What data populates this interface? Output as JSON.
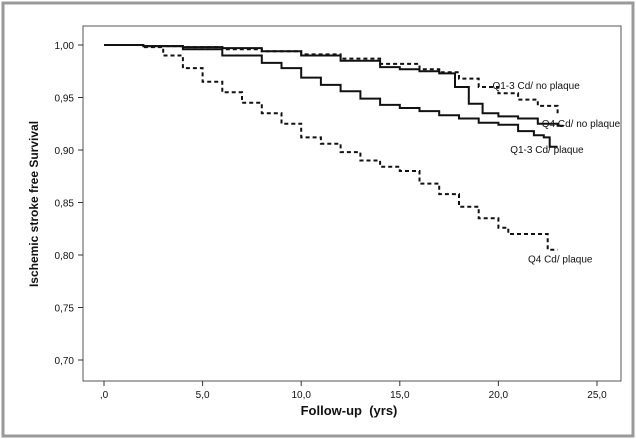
{
  "chart_data": {
    "type": "line",
    "title": "",
    "xlabel": "Follow-up  (yrs)",
    "ylabel": "Ischemic stroke free Survival",
    "xlim": [
      0,
      25
    ],
    "ylim": [
      0.7,
      1.0
    ],
    "x_ticks": [
      0,
      5,
      10,
      15,
      20,
      25
    ],
    "x_tick_labels": [
      ",0",
      "5,0",
      "10,0",
      "15,0",
      "20,0",
      "25,0"
    ],
    "y_ticks": [
      0.7,
      0.75,
      0.8,
      0.85,
      0.9,
      0.95,
      1.0
    ],
    "y_tick_labels": [
      "0,70",
      "0,75",
      "0,80",
      "0,85",
      "0,90",
      "0,95",
      "1,00"
    ],
    "grid": false,
    "series": [
      {
        "name": "Q1-3 Cd/ no plaque",
        "style": "dashed",
        "label_at": [
          19.7,
          0.958
        ],
        "points": [
          [
            0,
            1.0
          ],
          [
            2,
            0.999
          ],
          [
            4,
            0.998
          ],
          [
            6,
            0.996
          ],
          [
            8,
            0.994
          ],
          [
            10,
            0.991
          ],
          [
            12,
            0.987
          ],
          [
            14,
            0.982
          ],
          [
            16,
            0.977
          ],
          [
            17,
            0.974
          ],
          [
            18,
            0.968
          ],
          [
            19,
            0.96
          ],
          [
            20,
            0.954
          ],
          [
            21,
            0.948
          ],
          [
            22,
            0.942
          ],
          [
            23,
            0.935
          ]
        ]
      },
      {
        "name": "Q4 Cd/ no plaque",
        "style": "solid",
        "label_at": [
          22.2,
          0.922
        ],
        "points": [
          [
            0,
            1.0
          ],
          [
            2,
            0.999
          ],
          [
            4,
            0.998
          ],
          [
            6,
            0.997
          ],
          [
            8,
            0.994
          ],
          [
            10,
            0.99
          ],
          [
            12,
            0.985
          ],
          [
            14,
            0.979
          ],
          [
            15,
            0.977
          ],
          [
            16,
            0.975
          ],
          [
            17,
            0.973
          ],
          [
            17.8,
            0.96
          ],
          [
            18.5,
            0.944
          ],
          [
            19.2,
            0.935
          ],
          [
            20,
            0.932
          ],
          [
            21,
            0.93
          ],
          [
            22,
            0.925
          ],
          [
            23,
            0.923
          ],
          [
            23.3,
            0.923
          ]
        ]
      },
      {
        "name": "Q1-3 Cd/ plaque",
        "style": "solid",
        "label_at": [
          20.6,
          0.897
        ],
        "points": [
          [
            0,
            1.0
          ],
          [
            2,
            0.999
          ],
          [
            4,
            0.996
          ],
          [
            6,
            0.99
          ],
          [
            8,
            0.983
          ],
          [
            9,
            0.978
          ],
          [
            10,
            0.969
          ],
          [
            11,
            0.962
          ],
          [
            12,
            0.956
          ],
          [
            13,
            0.949
          ],
          [
            14,
            0.943
          ],
          [
            15,
            0.94
          ],
          [
            16,
            0.937
          ],
          [
            17,
            0.933
          ],
          [
            18,
            0.93
          ],
          [
            19,
            0.926
          ],
          [
            20,
            0.924
          ],
          [
            21,
            0.918
          ],
          [
            21.8,
            0.914
          ],
          [
            22.3,
            0.912
          ],
          [
            22.6,
            0.903
          ],
          [
            23,
            0.903
          ]
        ]
      },
      {
        "name": "Q4 Cd/ plaque",
        "style": "dashed",
        "label_at": [
          21.5,
          0.793
        ],
        "points": [
          [
            0,
            1.0
          ],
          [
            2,
            0.998
          ],
          [
            3,
            0.99
          ],
          [
            4,
            0.978
          ],
          [
            5,
            0.965
          ],
          [
            6,
            0.955
          ],
          [
            7,
            0.945
          ],
          [
            8,
            0.935
          ],
          [
            9,
            0.925
          ],
          [
            10,
            0.912
          ],
          [
            11,
            0.906
          ],
          [
            12,
            0.898
          ],
          [
            13,
            0.89
          ],
          [
            14,
            0.884
          ],
          [
            15,
            0.88
          ],
          [
            16,
            0.868
          ],
          [
            17,
            0.858
          ],
          [
            18,
            0.846
          ],
          [
            19,
            0.835
          ],
          [
            20,
            0.826
          ],
          [
            20.5,
            0.82
          ],
          [
            21,
            0.82
          ],
          [
            22,
            0.82
          ],
          [
            22.5,
            0.805
          ],
          [
            23,
            0.805
          ]
        ]
      }
    ]
  }
}
